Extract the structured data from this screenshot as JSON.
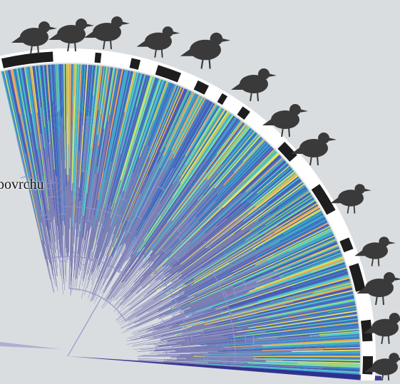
{
  "caption": "povrchu",
  "colors": {
    "background": "#d9dde0",
    "ring_light": "#ffffff",
    "ring_dark": "#1e1e1e",
    "silhouette": "#3a3a3a",
    "palette": [
      "#2b2a8a",
      "#3346b0",
      "#2f6fc2",
      "#29a0c9",
      "#3fc8c8",
      "#8ce07a",
      "#e7e44f",
      "#f2a04a"
    ]
  },
  "tree": {
    "type": "radial-phylogeny",
    "tip_palette": "viridis-to-orange"
  },
  "silhouettes": [
    {
      "name": "owl-icon"
    },
    {
      "name": "vulture-icon"
    },
    {
      "name": "kite-icon"
    },
    {
      "name": "curlew-icon"
    },
    {
      "name": "pelican-icon"
    },
    {
      "name": "hoatzin-icon"
    },
    {
      "name": "crane-icon"
    },
    {
      "name": "pigeon-icon"
    },
    {
      "name": "hummingbird-icon"
    },
    {
      "name": "songbird-icon"
    },
    {
      "name": "grouse-icon"
    },
    {
      "name": "duck-icon"
    },
    {
      "name": "quail-icon"
    }
  ]
}
